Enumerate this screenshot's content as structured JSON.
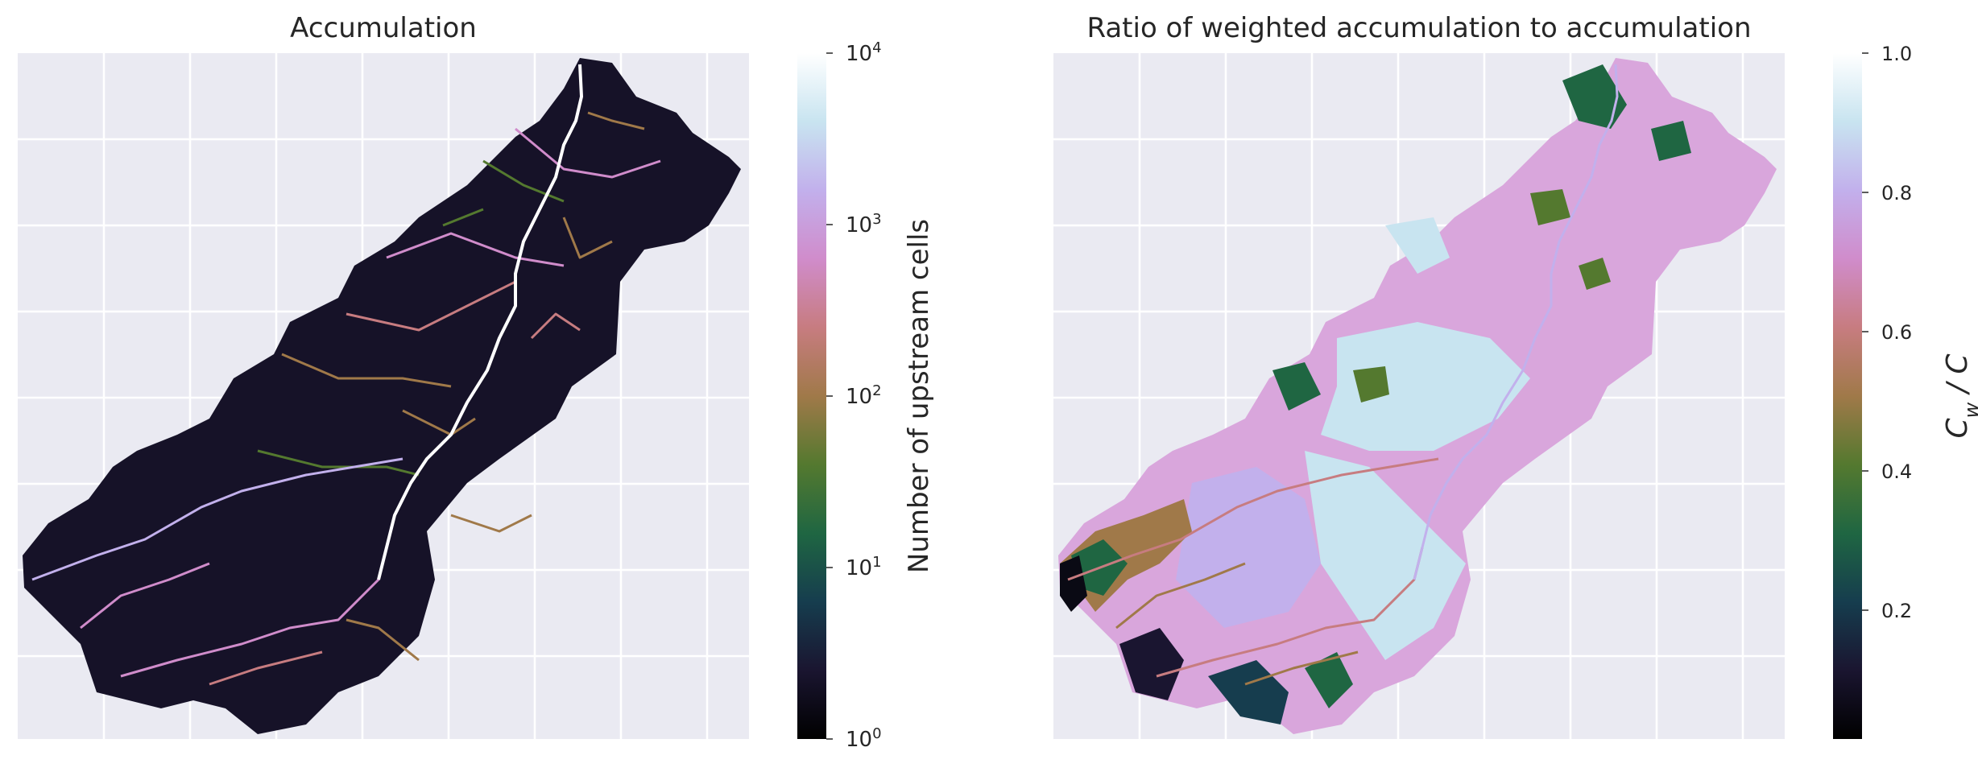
{
  "chart_data": [
    {
      "type": "heatmap",
      "title": "Accumulation",
      "grid": true,
      "colormap": "cubehelix",
      "colorbar": {
        "label": "Number of upstream cells",
        "scale": "log",
        "range": [
          1,
          10000
        ],
        "ticks": [
          {
            "base": "10",
            "exp": "0",
            "value": 1
          },
          {
            "base": "10",
            "exp": "1",
            "value": 10
          },
          {
            "base": "10",
            "exp": "2",
            "value": 100
          },
          {
            "base": "10",
            "exp": "3",
            "value": 1000
          },
          {
            "base": "10",
            "exp": "4",
            "value": 10000
          }
        ]
      },
      "values_description": "Raster of flow accumulation over a watershed (dark, low counts) with a bright branching river network; main channel approaches 10^4 upstream cells."
    },
    {
      "type": "heatmap",
      "title": "Ratio of weighted accumulation to accumulation",
      "grid": true,
      "colormap": "cubehelix",
      "colorbar": {
        "label_base": "C",
        "label_sub": "w",
        "label_rest": " / C",
        "scale": "linear",
        "range": [
          0.0,
          1.0
        ],
        "ticks": [
          "0.2",
          "0.4",
          "0.6",
          "0.8",
          "1.0"
        ]
      },
      "values_description": "Raster of ratio values over the same watershed: mostly 0.7-0.9 (pink/light blue) in upper region, low values (dark/green) along lower-left headwaters."
    }
  ]
}
